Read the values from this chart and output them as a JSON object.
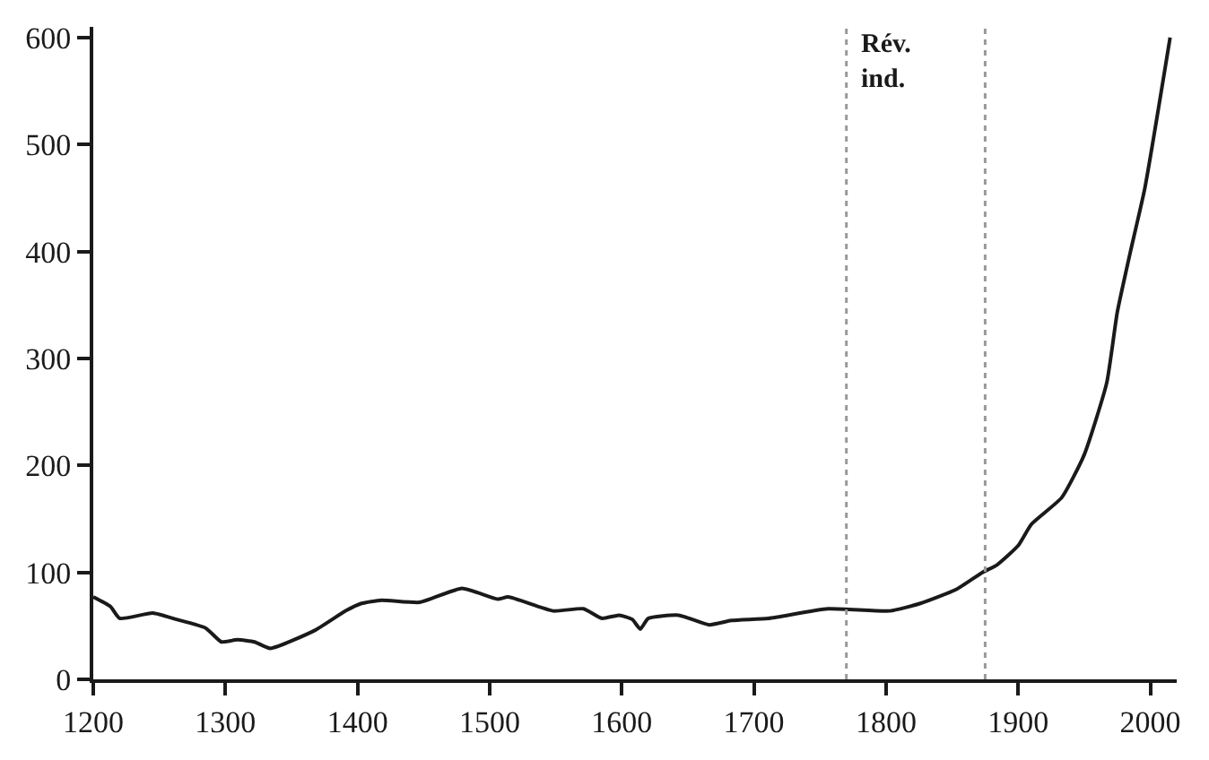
{
  "chart_data": {
    "type": "line",
    "x": [
      1200,
      1213,
      1220,
      1245,
      1263,
      1285,
      1297,
      1309,
      1322,
      1334,
      1368,
      1391,
      1403,
      1418,
      1447,
      1479,
      1506,
      1514,
      1548,
      1571,
      1585,
      1598,
      1608,
      1614,
      1620,
      1643,
      1666,
      1683,
      1711,
      1756,
      1803,
      1826,
      1853,
      1873,
      1884,
      1900,
      1910,
      1933,
      1950,
      1967,
      1975,
      1985,
      1996,
      2015
    ],
    "values": [
      77,
      68,
      57,
      62,
      56,
      48,
      35,
      37,
      35,
      29,
      46,
      64,
      71,
      74,
      72,
      85,
      75,
      77,
      64,
      66,
      57,
      60,
      56,
      47,
      57,
      60,
      51,
      55,
      57,
      66,
      64,
      71,
      84,
      100,
      107,
      125,
      145,
      170,
      210,
      277,
      343,
      400,
      460,
      600
    ],
    "color": "#1a1a1a",
    "xlim": [
      1200,
      2020
    ],
    "xticks": [
      1200,
      1300,
      1400,
      1500,
      1600,
      1700,
      1800,
      1900,
      2000
    ],
    "ylim": [
      0,
      610
    ],
    "yticks": [
      0,
      100,
      200,
      300,
      400,
      500,
      600
    ],
    "marker": "none",
    "line_style": "solid",
    "ref_lines": [
      {
        "axis": "x",
        "value": 1770,
        "label": "Rév.\nind.",
        "color": "#999999",
        "line_style": "dotted"
      },
      {
        "axis": "x",
        "value": 1875,
        "label": null,
        "color": "#999999",
        "line_style": "dotted"
      }
    ]
  }
}
